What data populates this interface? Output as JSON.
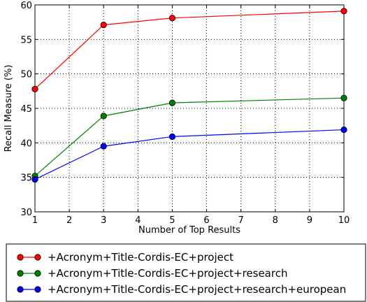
{
  "chart_data": {
    "type": "line",
    "xlabel": "Number of Top Results",
    "ylabel": "Recall Measure (%)",
    "xlim": [
      1,
      10
    ],
    "ylim": [
      30,
      60
    ],
    "x_ticks": [
      1,
      2,
      3,
      4,
      5,
      6,
      7,
      8,
      9,
      10
    ],
    "y_ticks": [
      30,
      35,
      40,
      45,
      50,
      55,
      60
    ],
    "grid": true,
    "legend_position": "below",
    "x": [
      1,
      3,
      5,
      10
    ],
    "series": [
      {
        "name": "+Acronym+Title-Cordis-EC+project",
        "color": "#ff0000",
        "values": [
          47.8,
          57.1,
          58.1,
          59.1
        ]
      },
      {
        "name": "+Acronym+Title-Cordis-EC+project+research",
        "color": "#008000",
        "values": [
          35.2,
          43.9,
          45.8,
          46.5
        ]
      },
      {
        "name": "+Acronym+Title-Cordis-EC+project+research+european",
        "color": "#0000ff",
        "values": [
          34.7,
          39.5,
          40.9,
          41.9
        ]
      }
    ]
  }
}
